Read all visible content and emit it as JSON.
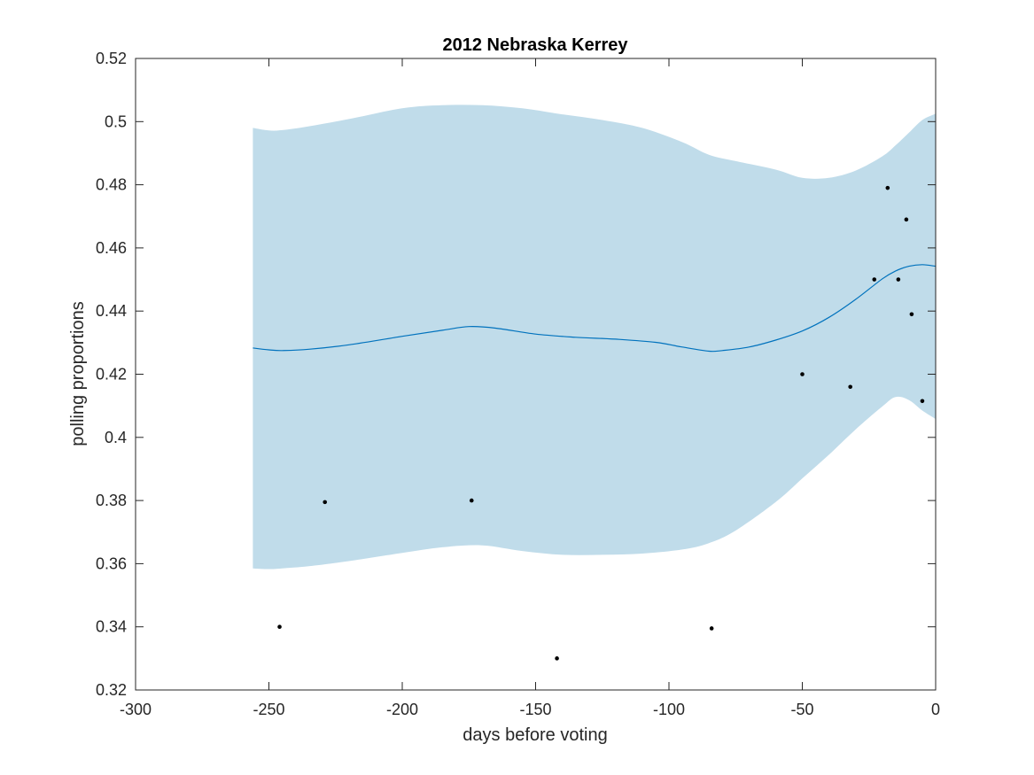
{
  "chart_data": {
    "type": "line",
    "title": "2012 Nebraska Kerrey",
    "xlabel": "days before voting",
    "ylabel": "polling proportions",
    "xlim": [
      -300,
      0
    ],
    "ylim": [
      0.32,
      0.52
    ],
    "xticks": [
      -300,
      -250,
      -200,
      -150,
      -100,
      -50,
      0
    ],
    "yticks": [
      0.32,
      0.34,
      0.36,
      0.38,
      0.4,
      0.42,
      0.44,
      0.46,
      0.48,
      0.5,
      0.52
    ],
    "xtick_labels": [
      "-300",
      "-250",
      "-200",
      "-150",
      "-100",
      "-50",
      "0"
    ],
    "ytick_labels": [
      "0.32",
      "0.34",
      "0.36",
      "0.38",
      "0.4",
      "0.42",
      "0.44",
      "0.46",
      "0.48",
      "0.5",
      "0.52"
    ],
    "grid": false,
    "colors": {
      "band": "#c0dcea",
      "mean": "#0072bd",
      "points": "#000000"
    },
    "band": {
      "x": [
        -256,
        -250,
        -245,
        -235,
        -220,
        -200,
        -185,
        -170,
        -155,
        -140,
        -125,
        -110,
        -95,
        -85,
        -75,
        -60,
        -50,
        -40,
        -30,
        -20,
        -15,
        -10,
        -5,
        0
      ],
      "upper": [
        0.498,
        0.4972,
        0.4973,
        0.4985,
        0.5008,
        0.5042,
        0.5052,
        0.5052,
        0.5042,
        0.5023,
        0.5005,
        0.498,
        0.4935,
        0.4895,
        0.4875,
        0.4848,
        0.4822,
        0.4822,
        0.4845,
        0.489,
        0.4925,
        0.4965,
        0.5005,
        0.5025
      ],
      "lower": [
        0.3585,
        0.3583,
        0.3585,
        0.3592,
        0.3608,
        0.3634,
        0.3652,
        0.3658,
        0.364,
        0.3628,
        0.3628,
        0.3632,
        0.3645,
        0.3665,
        0.3705,
        0.3795,
        0.387,
        0.3945,
        0.4025,
        0.4098,
        0.4128,
        0.4118,
        0.4085,
        0.4058
      ]
    },
    "series": [
      {
        "type": "line",
        "x": [
          -256,
          -250,
          -245,
          -235,
          -220,
          -200,
          -185,
          -175,
          -165,
          -150,
          -135,
          -120,
          -105,
          -95,
          -85,
          -80,
          -70,
          -60,
          -50,
          -40,
          -30,
          -20,
          -15,
          -10,
          -5,
          0
        ],
        "y": [
          0.4283,
          0.4277,
          0.4275,
          0.4279,
          0.4293,
          0.432,
          0.4339,
          0.4351,
          0.4346,
          0.4327,
          0.4317,
          0.4311,
          0.4301,
          0.4286,
          0.4273,
          0.4275,
          0.4286,
          0.4308,
          0.4337,
          0.438,
          0.4437,
          0.4502,
          0.4527,
          0.4542,
          0.4547,
          0.4542
        ]
      },
      {
        "type": "scatter",
        "x": [
          -246,
          -229,
          -174,
          -142,
          -84,
          -50,
          -32,
          -23,
          -18,
          -14,
          -11,
          -9,
          -5
        ],
        "y": [
          0.34,
          0.3795,
          0.38,
          0.33,
          0.3395,
          0.42,
          0.416,
          0.45,
          0.479,
          0.45,
          0.469,
          0.439,
          0.4115
        ]
      }
    ]
  }
}
